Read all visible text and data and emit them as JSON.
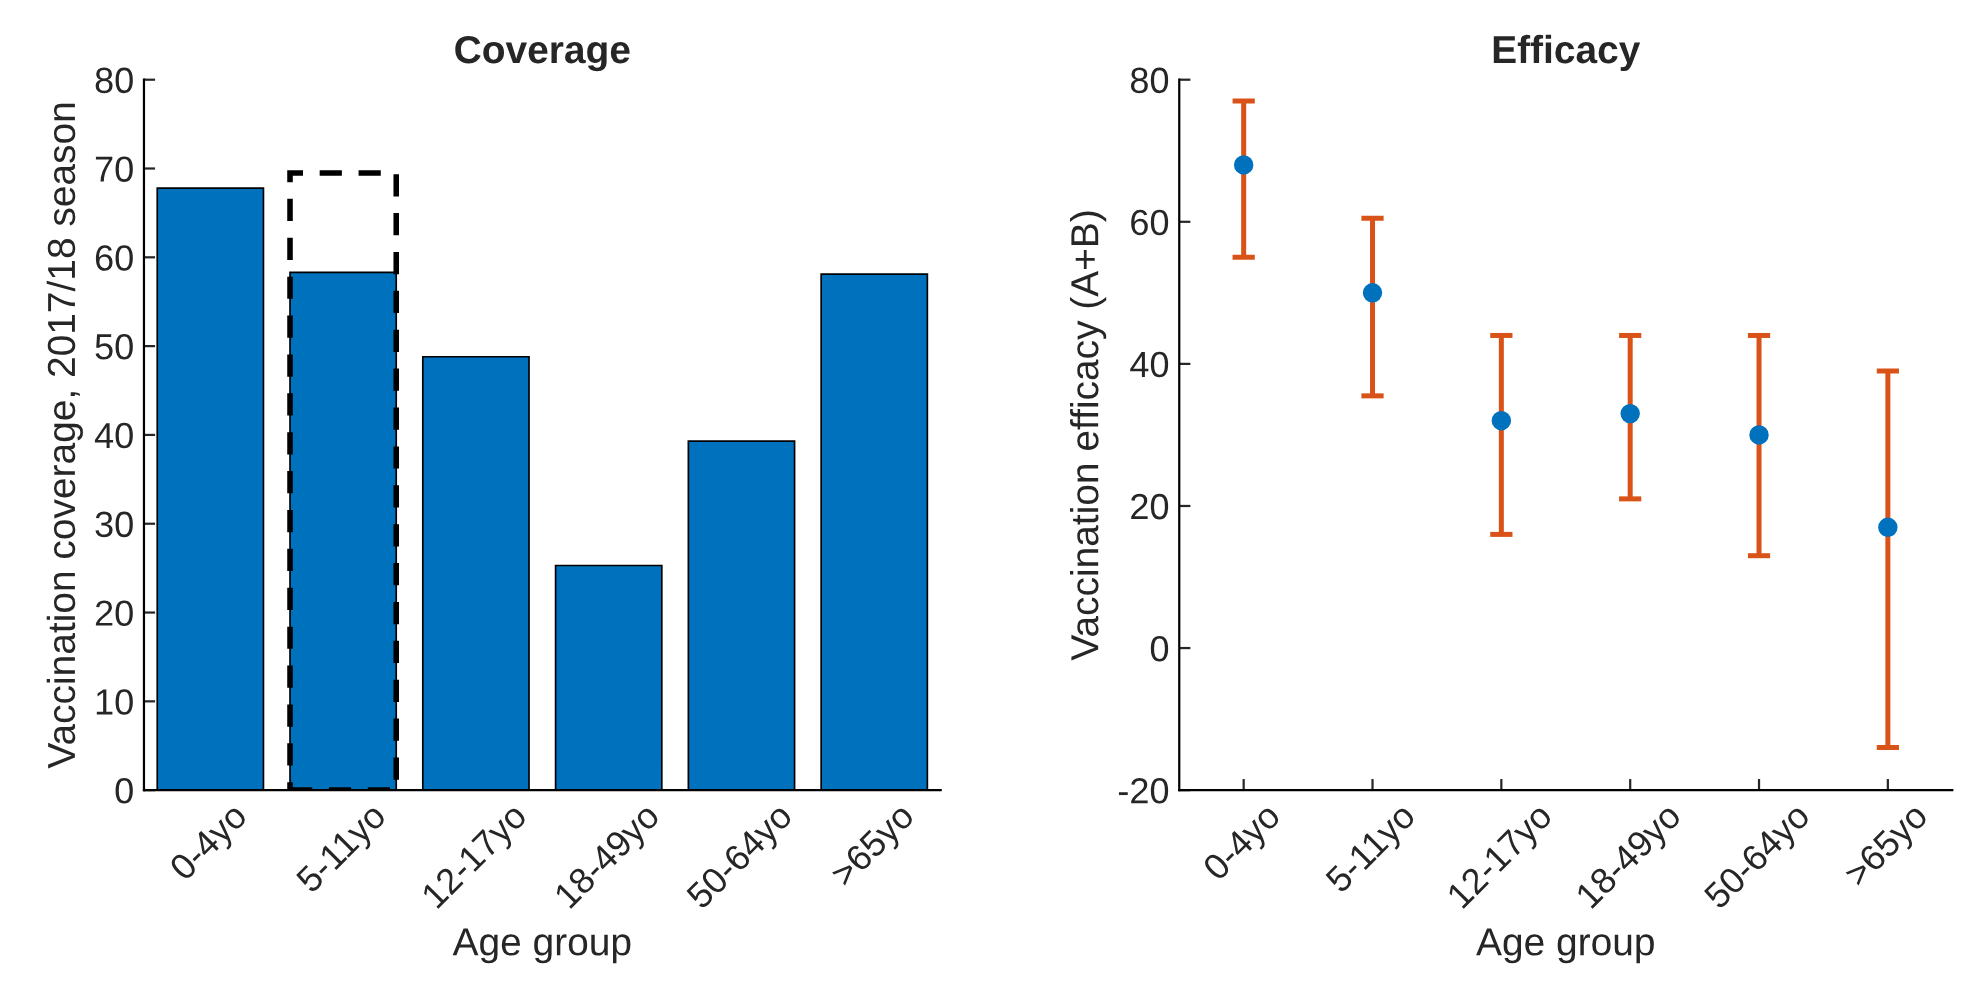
{
  "chart_data": [
    {
      "type": "bar",
      "title": "Coverage",
      "xlabel": "Age group",
      "ylabel": "Vaccination coverage, 2017/18 season",
      "categories": [
        "0-4yo",
        "5-11yo",
        "12-17yo",
        "18-49yo",
        "50-64yo",
        ">65yo"
      ],
      "series": [
        {
          "color": "#0072bd",
          "values": [
            67.8,
            58.3,
            48.8,
            25.3,
            39.3,
            58.1
          ]
        },
        {
          "color": "#000000",
          "line_style": "dashed",
          "values": [
            null,
            69.5,
            null,
            null,
            null,
            null
          ]
        }
      ],
      "ylim": [
        0,
        80
      ],
      "yticks": [
        0,
        10,
        20,
        30,
        40,
        50,
        60,
        70,
        80
      ],
      "grid": false,
      "legend": false
    },
    {
      "type": "scatter",
      "title": "Efficacy",
      "xlabel": "Age group",
      "ylabel": "Vaccination efficacy (A+B)",
      "categories": [
        "0-4yo",
        "5-11yo",
        "12-17yo",
        "18-49yo",
        "50-64yo",
        ">65yo"
      ],
      "series": [
        {
          "color": "#0072bd",
          "values": [
            68,
            50,
            32,
            33,
            30,
            17
          ],
          "errors": [
            [
              55,
              77
            ],
            [
              35.5,
              60.5
            ],
            [
              16,
              44
            ],
            [
              21,
              44
            ],
            [
              13,
              44
            ],
            [
              -14,
              39
            ]
          ]
        }
      ],
      "marker": "circle",
      "ylim": [
        -20,
        80
      ],
      "yticks": [
        -20,
        0,
        20,
        40,
        60,
        80
      ],
      "grid": false,
      "legend": false
    }
  ]
}
